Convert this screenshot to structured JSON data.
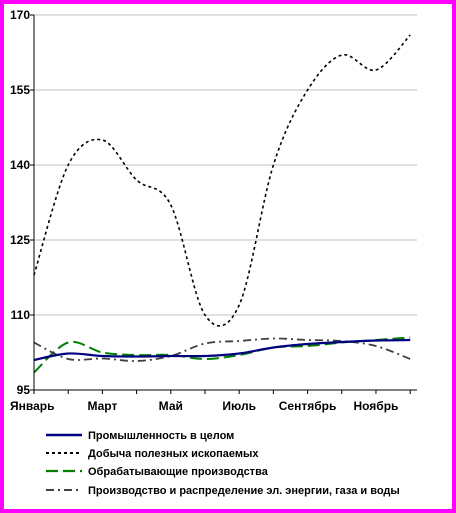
{
  "chart_data": {
    "type": "line",
    "x_labels": [
      "Январь",
      "Март",
      "Май",
      "Июль",
      "Сентябрь",
      "Ноябрь"
    ],
    "ylim": [
      95,
      170
    ],
    "y_ticks": [
      "95",
      "110",
      "125",
      "140",
      "155",
      "170"
    ],
    "grid": true,
    "legend_position": "bottom",
    "months": [
      1,
      2,
      3,
      4,
      5,
      6,
      7,
      8,
      9,
      10,
      11,
      12
    ],
    "series": [
      {
        "name": "Промышленность в целом",
        "color": "#000080",
        "dash": "solid",
        "values": [
          101.0,
          102.3,
          101.8,
          101.7,
          101.8,
          101.8,
          102.3,
          103.5,
          104.2,
          104.6,
          104.9,
          105.0
        ]
      },
      {
        "name": "Добыча полезных ископаемых",
        "color": "#000000",
        "dash": "dotted",
        "values": [
          118.0,
          140.0,
          145.0,
          137.0,
          132.0,
          110.0,
          112.0,
          140.0,
          155.0,
          162.0,
          159.0,
          166.0
        ]
      },
      {
        "name": "Обрабатывающие производства",
        "color": "#008000",
        "dash": "longdash",
        "values": [
          98.5,
          104.5,
          102.5,
          102.0,
          102.0,
          101.2,
          102.0,
          103.5,
          103.8,
          104.5,
          105.0,
          105.5
        ]
      },
      {
        "name": "Производство и распределение эл. энергии, газа и воды",
        "color": "#404040",
        "dash": "dashdot",
        "values": [
          104.5,
          101.2,
          101.3,
          100.8,
          101.8,
          104.3,
          104.8,
          105.3,
          105.0,
          104.8,
          103.8,
          101.2
        ]
      }
    ]
  }
}
